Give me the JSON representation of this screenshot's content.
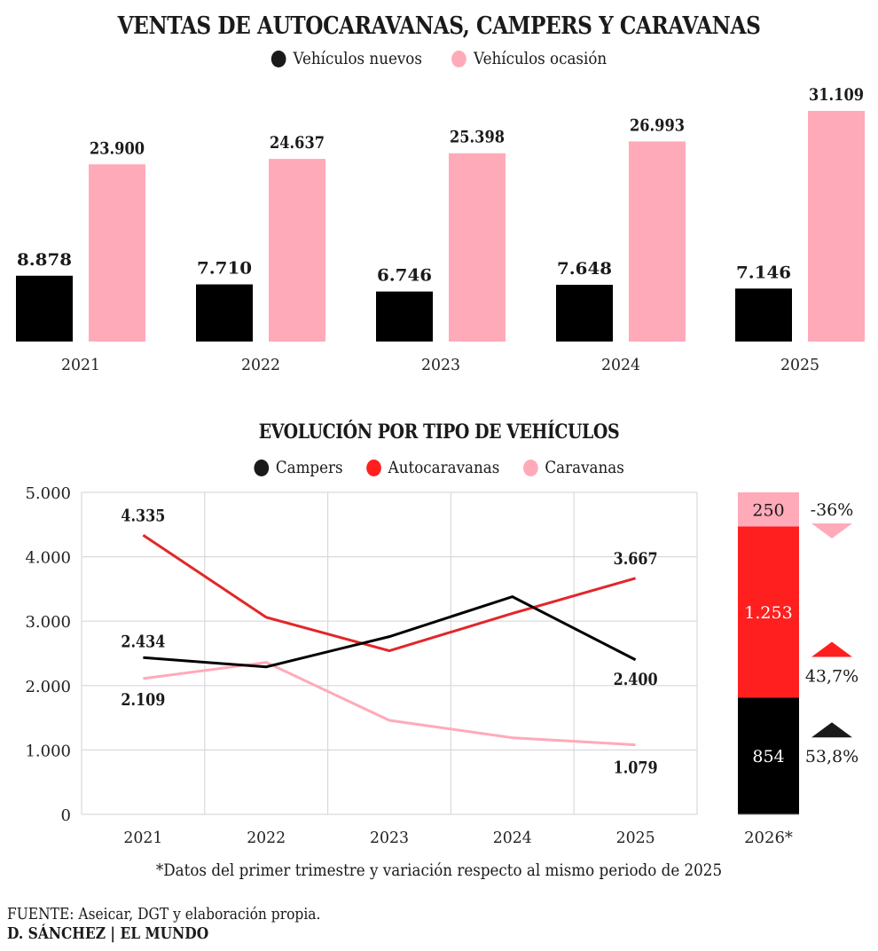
{
  "colors": {
    "nuevos": "#000000",
    "ocasion": "#FFAAB8",
    "campers": "#000000",
    "autocaravanas": "#FF1F1F",
    "caravanas": "#FFAAB8",
    "grid": "#D9D9D9"
  },
  "footer": {
    "note": "*Datos del primer trimestre y variación respecto al mismo periodo de 2025",
    "source": "FUENTE: Aseicar, DGT y elaboración propia.",
    "credit": "D. SÁNCHEZ | EL MUNDO"
  },
  "chart_data": [
    {
      "type": "bar",
      "title": "VENTAS DE AUTOCARAVANAS, CAMPERS Y CARAVANAS",
      "categories": [
        "2021",
        "2022",
        "2023",
        "2024",
        "2025"
      ],
      "series": [
        {
          "name": "Vehículos nuevos",
          "color": "#000000",
          "values": [
            8878,
            7710,
            6746,
            7648,
            7146
          ],
          "labels": [
            "8.878",
            "7.710",
            "6.746",
            "7.648",
            "7.146"
          ]
        },
        {
          "name": "Vehículos ocasión",
          "color": "#FFAAB8",
          "values": [
            23900,
            24637,
            25398,
            26993,
            31109
          ],
          "labels": [
            "23.900",
            "24.637",
            "25.398",
            "26.993",
            "31.109"
          ]
        }
      ],
      "legend": "top-center",
      "grid": false
    },
    {
      "type": "line",
      "title": "EVOLUCIÓN POR TIPO DE VEHÍCULOS",
      "x": [
        "2021",
        "2022",
        "2023",
        "2024",
        "2025"
      ],
      "ylim": [
        0,
        5000
      ],
      "yticks": [
        0,
        1000,
        2000,
        3000,
        4000,
        5000
      ],
      "ytick_labels": [
        "0",
        "1.000",
        "2.000",
        "3.000",
        "4.000",
        "5.000"
      ],
      "grid": true,
      "legend": "top-center",
      "series": [
        {
          "name": "Campers",
          "color": "#000000",
          "values": [
            2434,
            2290,
            2760,
            3380,
            2400
          ],
          "labels": {
            "first": "2.434",
            "last": "2.400"
          }
        },
        {
          "name": "Autocaravanas",
          "color": "#E3262A",
          "values": [
            4335,
            3060,
            2540,
            3120,
            3667
          ],
          "labels": {
            "first": "4.335",
            "last": "3.667"
          }
        },
        {
          "name": "Caravanas",
          "color": "#FFAAB8",
          "values": [
            2109,
            2360,
            1460,
            1190,
            1079
          ],
          "labels": {
            "first": "2.109",
            "last": "1.079"
          }
        }
      ]
    },
    {
      "type": "bar",
      "stacked": true,
      "category": "2026*",
      "segments": [
        {
          "name": "Campers",
          "value": 854,
          "label": "854",
          "color": "#000000",
          "change": "53,8%",
          "direction": "up"
        },
        {
          "name": "Autocaravanas",
          "value": 1253,
          "label": "1.253",
          "color": "#FF1F1F",
          "change": "43,7%",
          "direction": "up"
        },
        {
          "name": "Caravanas",
          "value": 250,
          "label": "250",
          "color": "#FFAAB8",
          "change": "-36%",
          "direction": "down"
        }
      ]
    }
  ]
}
